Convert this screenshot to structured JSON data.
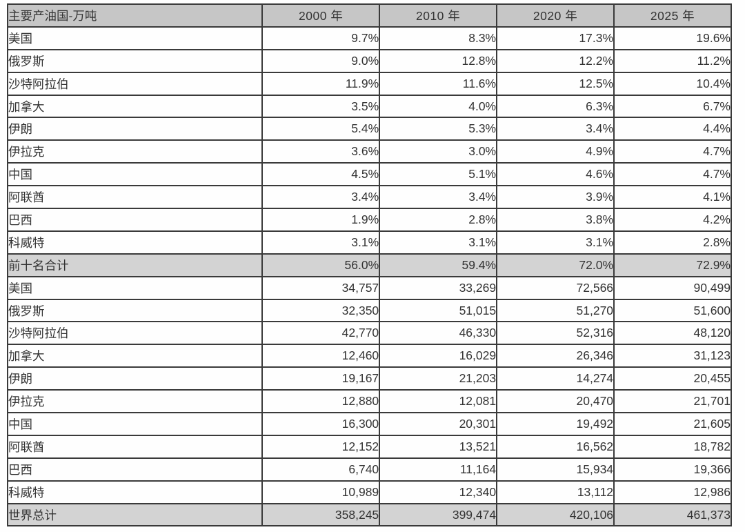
{
  "styles": {
    "header_bg": "#c6c6c6",
    "total_row_bg": "#d3d3d3",
    "border_color": "#3a3a3a",
    "text_color": "#333333"
  },
  "chart_data": {
    "type": "table",
    "title": "主要产油国-万吨",
    "columns": [
      "主要产油国-万吨",
      "2000 年",
      "2010 年",
      "2020 年",
      "2025 年"
    ],
    "sections": [
      {
        "kind": "share-of-world-percent",
        "rows": [
          {
            "label": "美国",
            "values": [
              "9.7%",
              "8.3%",
              "17.3%",
              "19.6%"
            ]
          },
          {
            "label": "俄罗斯",
            "values": [
              "9.0%",
              "12.8%",
              "12.2%",
              "11.2%"
            ]
          },
          {
            "label": "沙特阿拉伯",
            "values": [
              "11.9%",
              "11.6%",
              "12.5%",
              "10.4%"
            ]
          },
          {
            "label": "加拿大",
            "values": [
              "3.5%",
              "4.0%",
              "6.3%",
              "6.7%"
            ]
          },
          {
            "label": "伊朗",
            "values": [
              "5.4%",
              "5.3%",
              "3.4%",
              "4.4%"
            ]
          },
          {
            "label": "伊拉克",
            "values": [
              "3.6%",
              "3.0%",
              "4.9%",
              "4.7%"
            ]
          },
          {
            "label": "中国",
            "values": [
              "4.5%",
              "5.1%",
              "4.6%",
              "4.7%"
            ]
          },
          {
            "label": "阿联酋",
            "values": [
              "3.4%",
              "3.4%",
              "3.9%",
              "4.1%"
            ]
          },
          {
            "label": "巴西",
            "values": [
              "1.9%",
              "2.8%",
              "3.8%",
              "4.2%"
            ]
          },
          {
            "label": "科威特",
            "values": [
              "3.1%",
              "3.1%",
              "3.1%",
              "2.8%"
            ]
          }
        ],
        "total": {
          "label": "前十名合计",
          "values": [
            "56.0%",
            "59.4%",
            "72.0%",
            "72.9%"
          ]
        }
      },
      {
        "kind": "production-wan-tons",
        "rows": [
          {
            "label": "美国",
            "values": [
              "34,757",
              "33,269",
              "72,566",
              "90,499"
            ]
          },
          {
            "label": "俄罗斯",
            "values": [
              "32,350",
              "51,015",
              "51,270",
              "51,600"
            ]
          },
          {
            "label": "沙特阿拉伯",
            "values": [
              "42,770",
              "46,330",
              "52,316",
              "48,120"
            ]
          },
          {
            "label": "加拿大",
            "values": [
              "12,460",
              "16,029",
              "26,346",
              "31,123"
            ]
          },
          {
            "label": "伊朗",
            "values": [
              "19,167",
              "21,203",
              "14,274",
              "20,455"
            ]
          },
          {
            "label": "伊拉克",
            "values": [
              "12,880",
              "12,081",
              "20,470",
              "21,701"
            ]
          },
          {
            "label": "中国",
            "values": [
              "16,300",
              "20,301",
              "19,492",
              "21,605"
            ]
          },
          {
            "label": "阿联酋",
            "values": [
              "12,152",
              "13,521",
              "16,562",
              "18,782"
            ]
          },
          {
            "label": "巴西",
            "values": [
              "6,740",
              "11,164",
              "15,934",
              "19,366"
            ]
          },
          {
            "label": "科威特",
            "values": [
              "10,989",
              "12,340",
              "13,112",
              "12,986"
            ]
          }
        ],
        "total": {
          "label": "世界总计",
          "values": [
            "358,245",
            "399,474",
            "420,106",
            "461,373"
          ]
        }
      }
    ]
  }
}
